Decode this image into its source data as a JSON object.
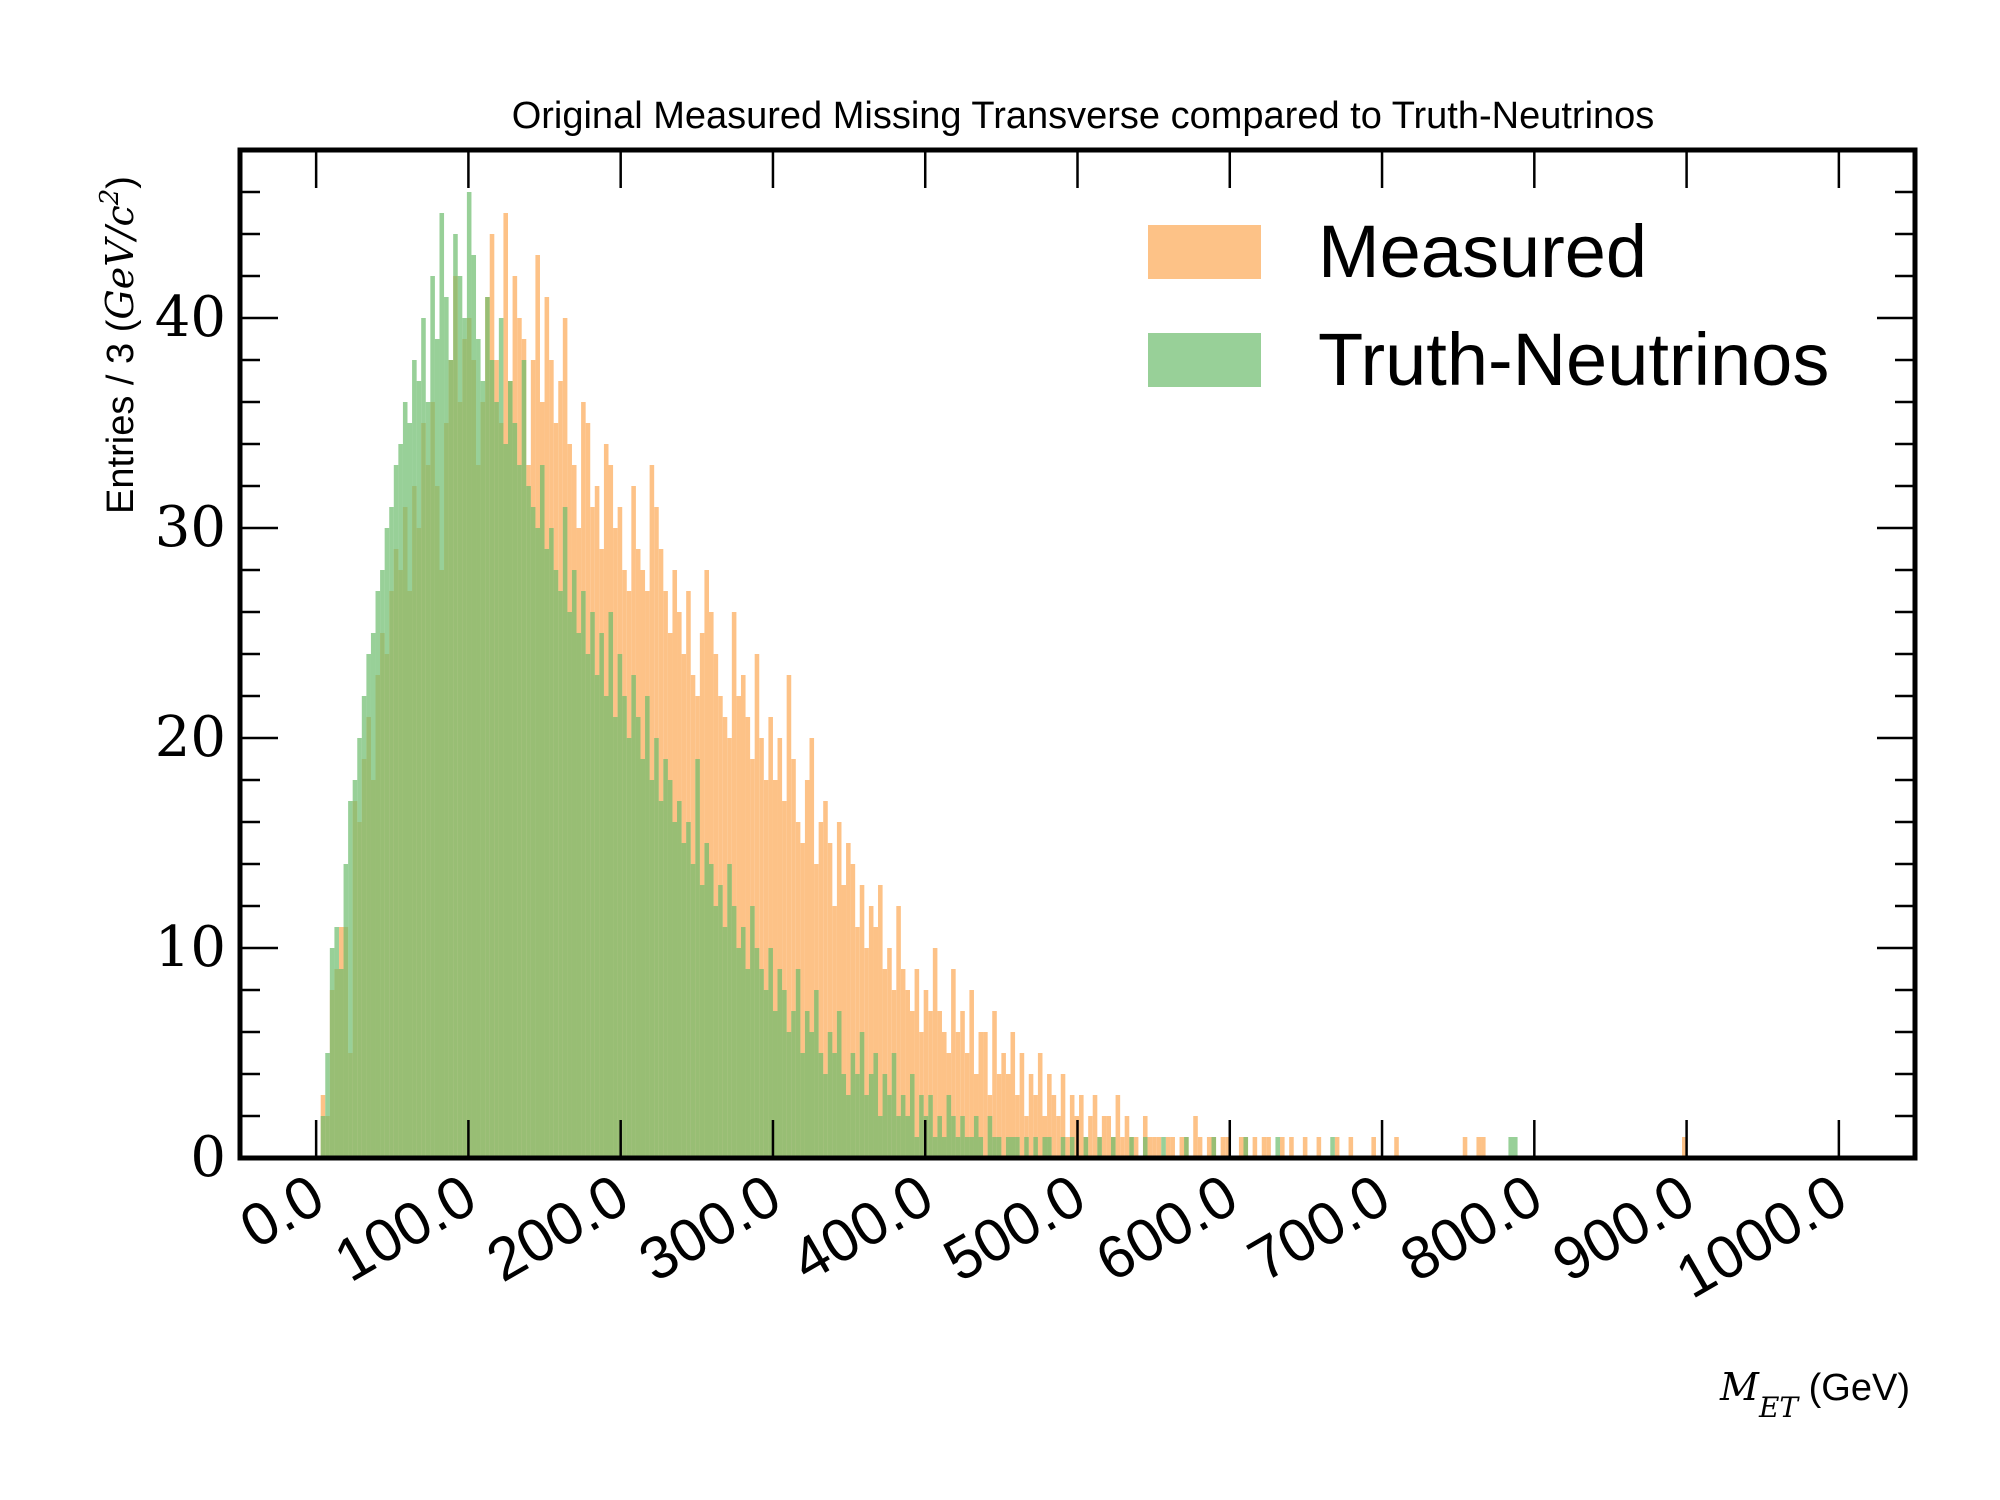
{
  "chart_data": {
    "type": "bar",
    "subtype": "overlaid-histogram",
    "title": "Original Measured Missing Transverse compared to Truth-Neutrinos",
    "xlabel": "M_ET (GeV)",
    "xlabel_math": "M",
    "xlabel_sub": "ET",
    "xlabel_unit": " (GeV)",
    "ylabel": "Entries / 3 (GeV/c²)",
    "ylabel_text": "Entries / 3 (",
    "ylabel_math": "GeV/c",
    "ylabel_sup": "2",
    "ylabel_close": ")",
    "xlim": [
      -50,
      1050
    ],
    "ylim": [
      0,
      48
    ],
    "bin_width": 3,
    "x_ticks": [
      0,
      100,
      200,
      300,
      400,
      500,
      600,
      700,
      800,
      900,
      1000
    ],
    "x_tick_labels": [
      "0.0",
      "100.0",
      "200.0",
      "300.0",
      "400.0",
      "500.0",
      "600.0",
      "700.0",
      "800.0",
      "900.0",
      "1000.0"
    ],
    "y_ticks": [
      0,
      10,
      20,
      30,
      40
    ],
    "y_tick_labels": [
      "0",
      "10",
      "20",
      "30",
      "40"
    ],
    "grid": false,
    "legend_position": "top-right",
    "series": [
      {
        "name": "Measured",
        "color": "#fdbf81",
        "alpha": 0.95,
        "start": 3,
        "values": [
          3,
          2,
          8,
          9,
          11,
          11,
          5,
          17,
          16,
          19,
          21,
          18,
          23,
          25,
          24,
          27,
          29,
          28,
          31,
          27,
          32,
          30,
          35,
          33,
          36,
          32,
          28,
          35,
          38,
          42,
          36,
          39,
          40,
          38,
          33,
          36,
          41,
          44,
          38,
          35,
          45,
          37,
          42,
          40,
          39,
          33,
          38,
          43,
          36,
          41,
          38,
          35,
          37,
          40,
          34,
          33,
          30,
          36,
          35,
          31,
          32,
          29,
          34,
          33,
          30,
          31,
          28,
          27,
          32,
          29,
          28,
          27,
          33,
          31,
          29,
          27,
          25,
          28,
          26,
          24,
          27,
          23,
          22,
          25,
          28,
          26,
          24,
          22,
          21,
          20,
          26,
          22,
          23,
          21,
          19,
          24,
          20,
          18,
          21,
          18,
          20,
          17,
          23,
          19,
          16,
          15,
          18,
          20,
          14,
          16,
          17,
          15,
          12,
          16,
          13,
          15,
          14,
          11,
          13,
          10,
          12,
          11,
          13,
          9,
          10,
          8,
          12,
          9,
          8,
          7,
          9,
          6,
          8,
          7,
          10,
          7,
          6,
          5,
          9,
          6,
          7,
          5,
          8,
          4,
          6,
          6,
          3,
          7,
          4,
          5,
          4,
          6,
          3,
          5,
          2,
          4,
          3,
          5,
          2,
          4,
          3,
          2,
          4,
          1,
          3,
          2,
          3,
          1,
          2,
          3,
          1,
          2,
          2,
          1,
          3,
          1,
          2,
          1,
          1,
          0,
          2,
          1,
          1,
          1,
          0,
          1,
          1,
          0,
          1,
          1,
          0,
          2,
          1,
          0,
          1,
          1,
          0,
          1,
          1,
          0,
          0,
          1,
          1,
          0,
          1,
          0,
          1,
          1,
          0,
          0,
          1,
          0,
          1,
          0,
          0,
          1,
          0,
          0,
          1,
          0,
          0,
          0,
          1,
          0,
          0,
          1,
          0,
          0,
          0,
          0,
          1,
          0,
          0,
          0,
          0,
          1,
          0,
          0,
          0,
          0,
          0,
          0,
          0,
          0,
          0,
          0,
          0,
          0,
          0,
          0,
          1,
          0,
          0,
          1,
          1,
          0,
          0,
          0,
          0,
          0,
          0,
          0,
          0,
          0,
          0,
          0,
          0,
          0,
          0,
          0,
          0,
          0,
          0,
          0,
          0,
          0,
          0,
          0,
          0,
          0,
          0,
          0,
          0,
          0,
          0,
          0,
          0,
          0,
          0,
          0,
          0,
          0,
          0,
          0,
          0,
          0,
          0,
          0,
          1
        ]
      },
      {
        "name": "Truth-Neutrinos",
        "color": "#6cbc6c",
        "alpha": 0.7,
        "start": 3,
        "values": [
          2,
          5,
          10,
          11,
          9,
          14,
          17,
          18,
          20,
          22,
          24,
          25,
          27,
          28,
          30,
          31,
          33,
          34,
          36,
          35,
          38,
          37,
          40,
          36,
          42,
          39,
          45,
          41,
          38,
          44,
          42,
          40,
          46,
          43,
          39,
          37,
          41,
          38,
          36,
          40,
          34,
          37,
          35,
          33,
          38,
          32,
          31,
          30,
          33,
          29,
          30,
          28,
          27,
          31,
          26,
          28,
          25,
          27,
          24,
          26,
          23,
          25,
          22,
          26,
          21,
          24,
          22,
          20,
          23,
          21,
          19,
          22,
          18,
          20,
          17,
          19,
          18,
          16,
          17,
          15,
          16,
          14,
          19,
          13,
          15,
          14,
          12,
          13,
          11,
          14,
          12,
          10,
          11,
          9,
          12,
          10,
          9,
          8,
          10,
          7,
          9,
          8,
          6,
          7,
          9,
          5,
          7,
          6,
          8,
          5,
          4,
          6,
          5,
          7,
          4,
          3,
          5,
          4,
          6,
          3,
          4,
          5,
          2,
          4,
          3,
          5,
          2,
          3,
          2,
          4,
          1,
          3,
          2,
          3,
          1,
          2,
          1,
          3,
          2,
          1,
          2,
          1,
          1,
          2,
          1,
          0,
          2,
          1,
          1,
          0,
          1,
          1,
          1,
          0,
          1,
          0,
          1,
          0,
          1,
          1,
          0,
          0,
          1,
          0,
          1,
          0,
          0,
          1,
          0,
          0,
          1,
          0,
          0,
          1,
          0,
          0,
          0,
          1,
          0,
          0,
          1,
          0,
          0,
          0,
          1,
          0,
          0,
          0,
          0,
          1,
          0,
          0,
          0,
          0,
          0,
          1,
          0,
          0,
          0,
          0,
          0,
          0,
          1,
          0,
          0,
          0,
          0,
          0,
          0,
          1,
          0,
          0,
          0,
          0,
          0,
          0,
          0,
          0,
          0,
          0,
          0,
          1,
          0,
          0,
          0,
          0,
          0,
          0,
          0,
          0,
          0,
          0,
          0,
          0,
          0,
          0,
          0,
          0,
          0,
          0,
          0,
          0,
          0,
          0,
          0,
          0,
          0,
          0,
          0,
          0,
          0,
          0,
          0,
          0,
          0,
          0,
          0,
          0,
          0,
          0,
          1,
          1
        ]
      }
    ]
  }
}
